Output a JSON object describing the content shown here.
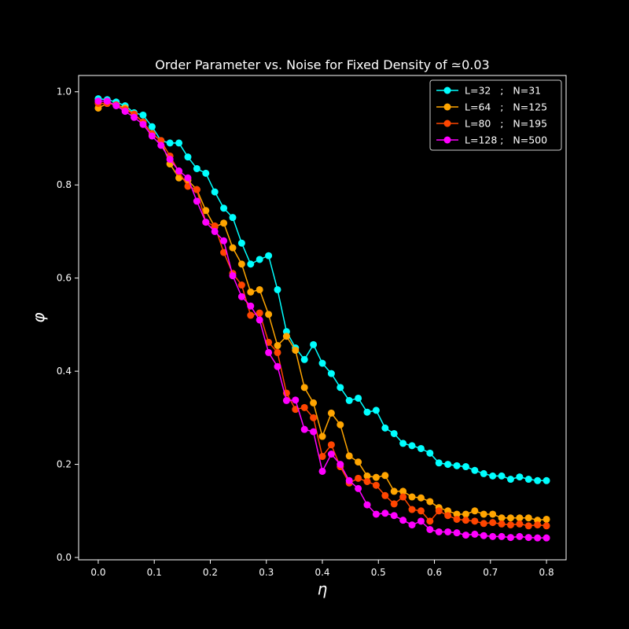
{
  "chart_data": {
    "type": "line",
    "title": "Order Parameter vs. Noise for Fixed Density of  ≃0.03",
    "xlabel": "η",
    "ylabel": "φ",
    "xlim": [
      -0.035,
      0.835
    ],
    "ylim": [
      -0.005,
      1.035
    ],
    "xticks": [
      0.0,
      0.1,
      0.2,
      0.3,
      0.4,
      0.5,
      0.6,
      0.7,
      0.8
    ],
    "xtick_labels": [
      "0.0",
      "0.1",
      "0.2",
      "0.3",
      "0.4",
      "0.5",
      "0.6",
      "0.7",
      "0.8"
    ],
    "yticks": [
      0.0,
      0.2,
      0.4,
      0.6,
      0.8,
      1.0
    ],
    "ytick_labels": [
      "0.0",
      "0.2",
      "0.4",
      "0.6",
      "0.8",
      "1.0"
    ],
    "grid": false,
    "legend_position": "top-right",
    "x": [
      0.0,
      0.016,
      0.032,
      0.048,
      0.064,
      0.08,
      0.096,
      0.112,
      0.128,
      0.144,
      0.16,
      0.176,
      0.192,
      0.208,
      0.224,
      0.24,
      0.256,
      0.272,
      0.288,
      0.304,
      0.32,
      0.336,
      0.352,
      0.368,
      0.384,
      0.4,
      0.416,
      0.432,
      0.448,
      0.464,
      0.48,
      0.496,
      0.512,
      0.528,
      0.544,
      0.56,
      0.576,
      0.592,
      0.608,
      0.624,
      0.64,
      0.656,
      0.672,
      0.688,
      0.704,
      0.72,
      0.736,
      0.752,
      0.768,
      0.784,
      0.8
    ],
    "series": [
      {
        "name": "L=32   ;   N=31",
        "color": "#00ffff",
        "values": [
          0.985,
          0.983,
          0.978,
          0.97,
          0.955,
          0.95,
          0.925,
          0.895,
          0.89,
          0.89,
          0.86,
          0.835,
          0.825,
          0.785,
          0.75,
          0.73,
          0.675,
          0.63,
          0.64,
          0.648,
          0.575,
          0.485,
          0.45,
          0.425,
          0.457,
          0.417,
          0.395,
          0.365,
          0.337,
          0.342,
          0.312,
          0.316,
          0.278,
          0.266,
          0.245,
          0.24,
          0.234,
          0.224,
          0.203,
          0.2,
          0.197,
          0.195,
          0.187,
          0.18,
          0.175,
          0.175,
          0.168,
          0.173,
          0.168,
          0.165,
          0.165
        ]
      },
      {
        "name": "L=64   ;   N=125",
        "color": "#ffa500",
        "values": [
          0.965,
          0.975,
          0.972,
          0.965,
          0.952,
          0.935,
          0.91,
          0.895,
          0.845,
          0.815,
          0.81,
          0.79,
          0.745,
          0.71,
          0.718,
          0.665,
          0.63,
          0.57,
          0.575,
          0.522,
          0.455,
          0.475,
          0.445,
          0.365,
          0.332,
          0.26,
          0.31,
          0.285,
          0.218,
          0.205,
          0.175,
          0.172,
          0.176,
          0.142,
          0.142,
          0.13,
          0.128,
          0.12,
          0.107,
          0.1,
          0.093,
          0.093,
          0.1,
          0.093,
          0.093,
          0.085,
          0.085,
          0.085,
          0.085,
          0.08,
          0.082
        ]
      },
      {
        "name": "L=80   ;   N=195",
        "color": "#ff4500",
        "values": [
          0.975,
          0.975,
          0.972,
          0.962,
          0.952,
          0.935,
          0.91,
          0.895,
          0.862,
          0.828,
          0.797,
          0.79,
          0.72,
          0.712,
          0.655,
          0.61,
          0.585,
          0.52,
          0.525,
          0.462,
          0.44,
          0.353,
          0.318,
          0.322,
          0.3,
          0.217,
          0.242,
          0.195,
          0.16,
          0.17,
          0.163,
          0.155,
          0.133,
          0.115,
          0.13,
          0.103,
          0.1,
          0.078,
          0.1,
          0.09,
          0.082,
          0.08,
          0.078,
          0.073,
          0.075,
          0.072,
          0.07,
          0.072,
          0.068,
          0.07,
          0.068
        ]
      },
      {
        "name": "L=128 ;   N=500",
        "color": "#ff00ff",
        "values": [
          0.98,
          0.98,
          0.97,
          0.958,
          0.945,
          0.93,
          0.905,
          0.885,
          0.855,
          0.83,
          0.815,
          0.765,
          0.72,
          0.7,
          0.68,
          0.605,
          0.56,
          0.54,
          0.51,
          0.44,
          0.41,
          0.337,
          0.338,
          0.275,
          0.27,
          0.185,
          0.222,
          0.2,
          0.165,
          0.148,
          0.113,
          0.093,
          0.095,
          0.09,
          0.08,
          0.07,
          0.078,
          0.06,
          0.055,
          0.055,
          0.053,
          0.048,
          0.05,
          0.047,
          0.045,
          0.045,
          0.043,
          0.045,
          0.043,
          0.042,
          0.042
        ]
      }
    ]
  }
}
